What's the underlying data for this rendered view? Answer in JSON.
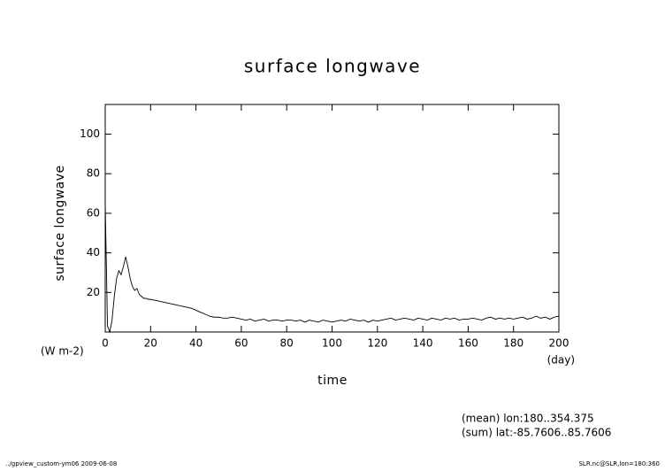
{
  "chart_data": {
    "type": "line",
    "title": "surface longwave",
    "y_label": "surface longwave",
    "y_unit": "(W m-2)",
    "x_label": "time",
    "x_unit": "(day)",
    "notes": [
      "(mean) lon:180..354.375",
      "(sum) lat:-85.7606..85.7606"
    ],
    "footer_left": "../gpview_custom-ym06  2009-06-08",
    "footer_right": "SLR.nc@SLR,lon=180:360",
    "xlim": [
      0,
      200
    ],
    "xticks": [
      0,
      20,
      40,
      60,
      80,
      100,
      120,
      140,
      160,
      180,
      200
    ],
    "ylim": [
      0,
      115
    ],
    "yticks": [
      20,
      40,
      60,
      80,
      100
    ],
    "color": "#000000",
    "x": [
      0,
      1,
      2,
      3,
      4,
      5,
      6,
      7,
      8,
      9,
      10,
      11,
      12,
      13,
      14,
      15,
      16,
      17,
      18,
      19,
      20,
      22,
      24,
      26,
      28,
      30,
      32,
      34,
      36,
      38,
      40,
      42,
      44,
      46,
      48,
      50,
      52,
      54,
      56,
      58,
      60,
      62,
      64,
      66,
      68,
      70,
      72,
      74,
      76,
      78,
      80,
      82,
      84,
      86,
      88,
      90,
      92,
      94,
      96,
      98,
      100,
      102,
      104,
      106,
      108,
      110,
      112,
      114,
      116,
      118,
      120,
      122,
      124,
      126,
      128,
      130,
      132,
      134,
      136,
      138,
      140,
      142,
      144,
      146,
      148,
      150,
      152,
      154,
      156,
      158,
      160,
      162,
      164,
      166,
      168,
      170,
      172,
      174,
      176,
      178,
      180,
      182,
      184,
      186,
      188,
      190,
      192,
      194,
      196,
      198,
      200
    ],
    "values": [
      65,
      3,
      0,
      6,
      18,
      27,
      31,
      29,
      33,
      38,
      33,
      27,
      23,
      21,
      22,
      19,
      18,
      17,
      17,
      16.5,
      16.5,
      16,
      15.5,
      15,
      14.5,
      14,
      13.5,
      13,
      12.5,
      12,
      11,
      10,
      9,
      8,
      7.5,
      7.5,
      7,
      7,
      7.5,
      7,
      6.5,
      6,
      6.5,
      5.5,
      6,
      6.5,
      5.5,
      6,
      6,
      5.5,
      6,
      6,
      5.5,
      6,
      5,
      6,
      5.5,
      5,
      6,
      5.5,
      5,
      5.5,
      6,
      5.5,
      6.5,
      6,
      5.5,
      6,
      5,
      6,
      5.5,
      6,
      6.5,
      7,
      6,
      6.5,
      7,
      6.5,
      6,
      7,
      6.5,
      6,
      7,
      6.5,
      6,
      7,
      6.5,
      7,
      6,
      6.5,
      6.5,
      7,
      6.5,
      6,
      7,
      7.5,
      6.5,
      7,
      6.5,
      7,
      6.5,
      7,
      7.5,
      6.5,
      7,
      8,
      7,
      7.5,
      6.5,
      7.5,
      8
    ]
  }
}
